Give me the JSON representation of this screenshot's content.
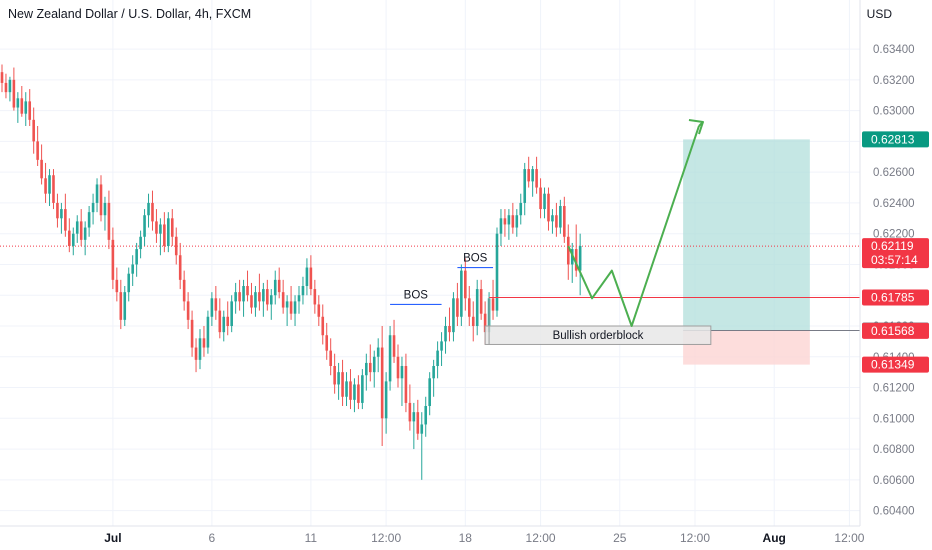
{
  "header": {
    "title": "New Zealand Dollar / U.S. Dollar, 4h, FXCM",
    "currency": "USD"
  },
  "colors": {
    "bull": "#26a69a",
    "bear": "#ef5350",
    "target_zone": "#b2dfdb",
    "stop_zone": "#fcd5d3",
    "projection": "#4caf50",
    "bos_line": "#2962ff",
    "tp_badge": "#089981",
    "sl_badge": "#f23645"
  },
  "chart_data": {
    "type": "candlestick",
    "ylim": [
      0.603,
      0.6355
    ],
    "y_ticks": [
      "0.60400",
      "0.60600",
      "0.60800",
      "0.61000",
      "0.61200",
      "0.61400",
      "0.61600",
      "0.61800",
      "0.62000",
      "0.62200",
      "0.62400",
      "0.62600",
      "0.62800",
      "0.63000",
      "0.63200",
      "0.63400"
    ],
    "x_ticks": [
      {
        "label": "Jul",
        "bar": 28
      },
      {
        "label": "6",
        "bar": 53
      },
      {
        "label": "11",
        "bar": 78
      },
      {
        "label": "12:00",
        "bar": 97
      },
      {
        "label": "18",
        "bar": 117
      },
      {
        "label": "12:00",
        "bar": 136
      },
      {
        "label": "25",
        "bar": 156
      },
      {
        "label": "12:00",
        "bar": 175
      },
      {
        "label": "Aug",
        "bar": 195
      },
      {
        "label": "12:00",
        "bar": 214
      }
    ],
    "candles": [
      [
        0.6325,
        0.633,
        0.6312,
        0.6318
      ],
      [
        0.6318,
        0.6324,
        0.6308,
        0.6312
      ],
      [
        0.6312,
        0.6322,
        0.6306,
        0.632
      ],
      [
        0.632,
        0.6328,
        0.63,
        0.6302
      ],
      [
        0.6302,
        0.6312,
        0.6292,
        0.6308
      ],
      [
        0.6308,
        0.6316,
        0.6296,
        0.6298
      ],
      [
        0.6298,
        0.6312,
        0.629,
        0.6306
      ],
      [
        0.6306,
        0.6314,
        0.629,
        0.6294
      ],
      [
        0.6294,
        0.6302,
        0.6272,
        0.628
      ],
      [
        0.628,
        0.629,
        0.6264,
        0.6268
      ],
      [
        0.6268,
        0.6278,
        0.6252,
        0.6256
      ],
      [
        0.6256,
        0.6266,
        0.624,
        0.6246
      ],
      [
        0.6246,
        0.6262,
        0.6238,
        0.6258
      ],
      [
        0.6258,
        0.6262,
        0.6236,
        0.624
      ],
      [
        0.624,
        0.6246,
        0.6224,
        0.623
      ],
      [
        0.623,
        0.624,
        0.622,
        0.6236
      ],
      [
        0.6236,
        0.6246,
        0.6218,
        0.6222
      ],
      [
        0.6222,
        0.623,
        0.6208,
        0.6212
      ],
      [
        0.6212,
        0.6224,
        0.6206,
        0.622
      ],
      [
        0.622,
        0.6232,
        0.6214,
        0.6228
      ],
      [
        0.6228,
        0.6236,
        0.6212,
        0.6216
      ],
      [
        0.6216,
        0.6228,
        0.6206,
        0.6224
      ],
      [
        0.6224,
        0.6238,
        0.6218,
        0.6234
      ],
      [
        0.6234,
        0.6246,
        0.6226,
        0.624
      ],
      [
        0.624,
        0.6256,
        0.6234,
        0.6252
      ],
      [
        0.6252,
        0.6258,
        0.6228,
        0.6232
      ],
      [
        0.6232,
        0.6244,
        0.6222,
        0.624
      ],
      [
        0.624,
        0.6248,
        0.621,
        0.6216
      ],
      [
        0.6216,
        0.6224,
        0.6184,
        0.619
      ],
      [
        0.619,
        0.6198,
        0.6176,
        0.6182
      ],
      [
        0.6182,
        0.619,
        0.6158,
        0.6164
      ],
      [
        0.6164,
        0.6186,
        0.616,
        0.6182
      ],
      [
        0.6182,
        0.6198,
        0.6176,
        0.6194
      ],
      [
        0.6194,
        0.6206,
        0.6186,
        0.62
      ],
      [
        0.62,
        0.6214,
        0.6192,
        0.621
      ],
      [
        0.621,
        0.6222,
        0.6204,
        0.6218
      ],
      [
        0.6218,
        0.6236,
        0.6212,
        0.6232
      ],
      [
        0.6232,
        0.6246,
        0.6224,
        0.624
      ],
      [
        0.624,
        0.6248,
        0.6222,
        0.6228
      ],
      [
        0.6228,
        0.6236,
        0.6214,
        0.622
      ],
      [
        0.622,
        0.623,
        0.6206,
        0.6226
      ],
      [
        0.6226,
        0.6234,
        0.6208,
        0.6212
      ],
      [
        0.6212,
        0.6234,
        0.6208,
        0.623
      ],
      [
        0.623,
        0.6236,
        0.6212,
        0.6218
      ],
      [
        0.6218,
        0.6224,
        0.62,
        0.6206
      ],
      [
        0.6206,
        0.6214,
        0.6184,
        0.619
      ],
      [
        0.619,
        0.6196,
        0.617,
        0.6176
      ],
      [
        0.6176,
        0.6182,
        0.6158,
        0.6164
      ],
      [
        0.6164,
        0.617,
        0.614,
        0.6146
      ],
      [
        0.6146,
        0.6152,
        0.613,
        0.6138
      ],
      [
        0.6138,
        0.6158,
        0.6132,
        0.6152
      ],
      [
        0.6152,
        0.616,
        0.614,
        0.6146
      ],
      [
        0.6146,
        0.617,
        0.6142,
        0.6166
      ],
      [
        0.6166,
        0.6182,
        0.616,
        0.6178
      ],
      [
        0.6178,
        0.6186,
        0.6164,
        0.617
      ],
      [
        0.617,
        0.6178,
        0.6152,
        0.6156
      ],
      [
        0.6156,
        0.617,
        0.615,
        0.6166
      ],
      [
        0.6166,
        0.6176,
        0.6154,
        0.616
      ],
      [
        0.616,
        0.618,
        0.6156,
        0.6176
      ],
      [
        0.6176,
        0.6188,
        0.6168,
        0.6182
      ],
      [
        0.6182,
        0.619,
        0.617,
        0.6176
      ],
      [
        0.6176,
        0.619,
        0.6166,
        0.6186
      ],
      [
        0.6186,
        0.6196,
        0.6176,
        0.618
      ],
      [
        0.618,
        0.6188,
        0.6168,
        0.6172
      ],
      [
        0.6172,
        0.6186,
        0.6166,
        0.6182
      ],
      [
        0.6182,
        0.6194,
        0.617,
        0.6176
      ],
      [
        0.6176,
        0.6188,
        0.6166,
        0.6184
      ],
      [
        0.6184,
        0.619,
        0.617,
        0.6174
      ],
      [
        0.6174,
        0.6184,
        0.6164,
        0.618
      ],
      [
        0.618,
        0.6196,
        0.6174,
        0.619
      ],
      [
        0.619,
        0.6198,
        0.6178,
        0.6182
      ],
      [
        0.6182,
        0.619,
        0.6168,
        0.6172
      ],
      [
        0.6172,
        0.618,
        0.616,
        0.6176
      ],
      [
        0.6176,
        0.6186,
        0.6164,
        0.6168
      ],
      [
        0.6168,
        0.618,
        0.616,
        0.6176
      ],
      [
        0.6176,
        0.6186,
        0.6168,
        0.618
      ],
      [
        0.618,
        0.6192,
        0.6174,
        0.6186
      ],
      [
        0.6186,
        0.6204,
        0.618,
        0.6198
      ],
      [
        0.6198,
        0.6206,
        0.618,
        0.6184
      ],
      [
        0.6184,
        0.619,
        0.6168,
        0.6174
      ],
      [
        0.6174,
        0.618,
        0.616,
        0.6166
      ],
      [
        0.6166,
        0.6174,
        0.6148,
        0.6154
      ],
      [
        0.6154,
        0.6162,
        0.6138,
        0.6144
      ],
      [
        0.6144,
        0.6152,
        0.6128,
        0.6134
      ],
      [
        0.6134,
        0.6142,
        0.6116,
        0.6122
      ],
      [
        0.6122,
        0.6136,
        0.6112,
        0.613
      ],
      [
        0.613,
        0.6138,
        0.6108,
        0.6114
      ],
      [
        0.6114,
        0.613,
        0.6108,
        0.6124
      ],
      [
        0.6124,
        0.6132,
        0.6106,
        0.6112
      ],
      [
        0.6112,
        0.6126,
        0.6104,
        0.6122
      ],
      [
        0.6122,
        0.6128,
        0.6106,
        0.611
      ],
      [
        0.611,
        0.6132,
        0.6106,
        0.6128
      ],
      [
        0.6128,
        0.6142,
        0.6118,
        0.6136
      ],
      [
        0.6136,
        0.6148,
        0.6124,
        0.613
      ],
      [
        0.613,
        0.6144,
        0.612,
        0.614
      ],
      [
        0.614,
        0.6152,
        0.613,
        0.6146
      ],
      [
        0.6146,
        0.616,
        0.6082,
        0.61
      ],
      [
        0.61,
        0.613,
        0.609,
        0.6124
      ],
      [
        0.6124,
        0.616,
        0.6118,
        0.6154
      ],
      [
        0.6154,
        0.6164,
        0.6136,
        0.614
      ],
      [
        0.614,
        0.6148,
        0.612,
        0.6126
      ],
      [
        0.6126,
        0.614,
        0.6108,
        0.6134
      ],
      [
        0.6134,
        0.6142,
        0.6104,
        0.611
      ],
      [
        0.611,
        0.6122,
        0.6092,
        0.6098
      ],
      [
        0.6098,
        0.611,
        0.608,
        0.6104
      ],
      [
        0.6104,
        0.6112,
        0.6086,
        0.609
      ],
      [
        0.609,
        0.6104,
        0.606,
        0.6096
      ],
      [
        0.6096,
        0.6114,
        0.6088,
        0.6108
      ],
      [
        0.6108,
        0.613,
        0.6102,
        0.6126
      ],
      [
        0.6126,
        0.6138,
        0.6114,
        0.6134
      ],
      [
        0.6134,
        0.615,
        0.6126,
        0.6144
      ],
      [
        0.6144,
        0.6156,
        0.6134,
        0.615
      ],
      [
        0.615,
        0.6166,
        0.6142,
        0.616
      ],
      [
        0.616,
        0.6172,
        0.615,
        0.6156
      ],
      [
        0.6156,
        0.6182,
        0.615,
        0.6178
      ],
      [
        0.6178,
        0.6188,
        0.616,
        0.6166
      ],
      [
        0.6166,
        0.62,
        0.616,
        0.6196
      ],
      [
        0.6196,
        0.6204,
        0.617,
        0.6178
      ],
      [
        0.6178,
        0.6186,
        0.616,
        0.6166
      ],
      [
        0.6166,
        0.6176,
        0.615,
        0.616
      ],
      [
        0.616,
        0.619,
        0.6154,
        0.6184
      ],
      [
        0.6184,
        0.619,
        0.6164,
        0.6168
      ],
      [
        0.6168,
        0.6176,
        0.6148,
        0.6156
      ],
      [
        0.6156,
        0.6182,
        0.6148,
        0.6178
      ],
      [
        0.6178,
        0.619,
        0.6164,
        0.617
      ],
      [
        0.617,
        0.6224,
        0.6166,
        0.622
      ],
      [
        0.622,
        0.6236,
        0.6212,
        0.623
      ],
      [
        0.623,
        0.6236,
        0.6218,
        0.6226
      ],
      [
        0.6226,
        0.6236,
        0.6216,
        0.6232
      ],
      [
        0.6232,
        0.624,
        0.622,
        0.6224
      ],
      [
        0.6224,
        0.6236,
        0.6218,
        0.6232
      ],
      [
        0.6232,
        0.6246,
        0.6226,
        0.624
      ],
      [
        0.624,
        0.6266,
        0.6232,
        0.6262
      ],
      [
        0.6262,
        0.627,
        0.625,
        0.6254
      ],
      [
        0.6254,
        0.6264,
        0.6244,
        0.6262
      ],
      [
        0.6262,
        0.627,
        0.6246,
        0.625
      ],
      [
        0.625,
        0.6256,
        0.623,
        0.6236
      ],
      [
        0.6236,
        0.625,
        0.623,
        0.6246
      ],
      [
        0.6246,
        0.625,
        0.6222,
        0.6228
      ],
      [
        0.6228,
        0.6236,
        0.622,
        0.6232
      ],
      [
        0.6232,
        0.624,
        0.6218,
        0.6224
      ],
      [
        0.6224,
        0.6242,
        0.622,
        0.6238
      ],
      [
        0.6238,
        0.6244,
        0.6214,
        0.6218
      ],
      [
        0.6218,
        0.6226,
        0.619,
        0.62
      ],
      [
        0.62,
        0.6214,
        0.6188,
        0.621
      ],
      [
        0.621,
        0.6226,
        0.6192,
        0.6196
      ],
      [
        0.6196,
        0.622,
        0.618,
        0.6212
      ]
    ],
    "annotations": [
      {
        "type": "bos",
        "label": "BOS",
        "price": 0.6174,
        "from": 98,
        "to": 111
      },
      {
        "type": "bos",
        "label": "BOS",
        "price": 0.6198,
        "from": 115,
        "to": 124
      },
      {
        "type": "box",
        "label": "Bullish orderblock",
        "top": 0.616,
        "bottom": 0.6148,
        "from": 122,
        "to": 179
      },
      {
        "type": "line",
        "price": 0.61785,
        "from": 123,
        "to": 212,
        "color": "#f23645"
      }
    ],
    "position": {
      "entry": 0.61571,
      "target": 0.62813,
      "stop": 0.61349,
      "from": 172,
      "to": 204
    },
    "projection_path": [
      [
        143,
        0.6212
      ],
      [
        149,
        0.6178
      ],
      [
        154,
        0.6196
      ],
      [
        159,
        0.616
      ],
      [
        176,
        0.629
      ],
      [
        179,
        0.6297
      ],
      [
        175,
        0.6298
      ],
      [
        179,
        0.6297
      ],
      [
        178,
        0.6292
      ]
    ],
    "current_price": "0.62119",
    "countdown": "03:57:14",
    "price_badges": [
      {
        "label": "0.62813",
        "price": 0.62813,
        "color": "#089981"
      },
      {
        "label": "0.62119",
        "price": 0.62119,
        "color": "#f23645"
      },
      {
        "label": "0.61785",
        "price": 0.61785,
        "color": "#f23645"
      },
      {
        "label": "0.61571",
        "price": 0.61571,
        "color": "#787b86"
      },
      {
        "label": "0.61568",
        "price": 0.61568,
        "color": "#f23645"
      },
      {
        "label": "0.61349",
        "price": 0.61349,
        "color": "#f23645"
      }
    ]
  }
}
